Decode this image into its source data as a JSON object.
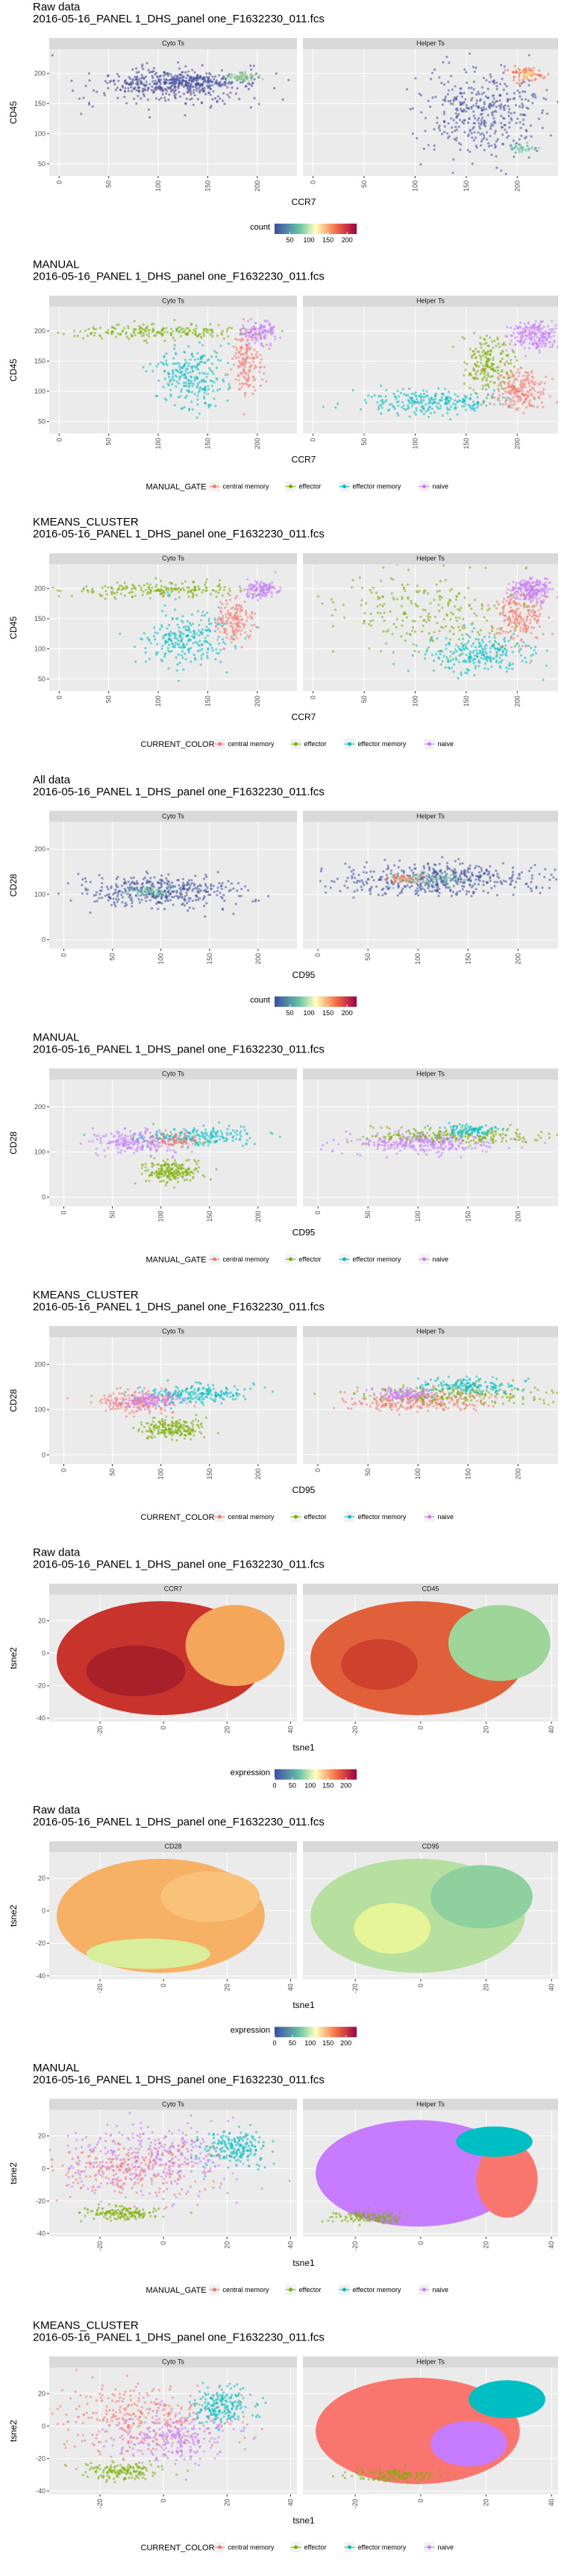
{
  "chart_data": [
    {
      "type": "density",
      "title": [
        "Raw data",
        "2016-05-16_PANEL 1_DHS_panel one_F1632230_011.fcs"
      ],
      "facets": [
        "Cyto Ts",
        "Helper Ts"
      ],
      "xlabel": "CCR7",
      "ylabel": "CD45",
      "xlim": [
        -10,
        240
      ],
      "xticks": [
        0,
        50,
        100,
        150,
        200
      ],
      "ylim": [
        30,
        240
      ],
      "yticks": [
        50,
        100,
        150,
        200
      ],
      "legend_title": "count",
      "colorbar_lim": [
        10,
        225
      ],
      "colorbar_ticks": [
        50,
        100,
        150,
        200
      ]
    },
    {
      "type": "scatter",
      "title": [
        "MANUAL",
        "2016-05-16_PANEL 1_DHS_panel one_F1632230_011.fcs"
      ],
      "facets": [
        "Cyto Ts",
        "Helper Ts"
      ],
      "xlabel": "CCR7",
      "ylabel": "CD45",
      "xlim": [
        -10,
        240
      ],
      "xticks": [
        0,
        50,
        100,
        150,
        200
      ],
      "ylim": [
        30,
        240
      ],
      "yticks": [
        50,
        100,
        150,
        200
      ],
      "legend_title": "MANUAL_GATE",
      "series": [
        {
          "name": "central memory",
          "color": "#F8766D"
        },
        {
          "name": "effector",
          "color": "#7CAE00"
        },
        {
          "name": "effector memory",
          "color": "#00BFC4"
        },
        {
          "name": "naive",
          "color": "#C77CFF"
        }
      ]
    },
    {
      "type": "scatter",
      "title": [
        "KMEANS_CLUSTER",
        "2016-05-16_PANEL 1_DHS_panel one_F1632230_011.fcs"
      ],
      "facets": [
        "Cyto Ts",
        "Helper Ts"
      ],
      "xlabel": "CCR7",
      "ylabel": "CD45",
      "xlim": [
        -10,
        240
      ],
      "xticks": [
        0,
        50,
        100,
        150,
        200
      ],
      "ylim": [
        30,
        240
      ],
      "yticks": [
        50,
        100,
        150,
        200
      ],
      "legend_title": "CURRENT_COLOR",
      "series": [
        {
          "name": "central memory",
          "color": "#F8766D"
        },
        {
          "name": "effector",
          "color": "#7CAE00"
        },
        {
          "name": "effector memory",
          "color": "#00BFC4"
        },
        {
          "name": "naive",
          "color": "#C77CFF"
        }
      ]
    },
    {
      "type": "density",
      "title": [
        "All data",
        "2016-05-16_PANEL 1_DHS_panel one_F1632230_011.fcs"
      ],
      "facets": [
        "Cyto Ts",
        "Helper Ts"
      ],
      "xlabel": "CD95",
      "ylabel": "CD28",
      "xlim": [
        -15,
        240
      ],
      "xticks": [
        0,
        50,
        100,
        150,
        200
      ],
      "ylim": [
        -20,
        260
      ],
      "yticks": [
        0,
        100,
        200
      ],
      "legend_title": "count",
      "colorbar_lim": [
        10,
        225
      ],
      "colorbar_ticks": [
        50,
        100,
        150,
        200
      ]
    },
    {
      "type": "scatter",
      "title": [
        "MANUAL",
        "2016-05-16_PANEL 1_DHS_panel one_F1632230_011.fcs"
      ],
      "facets": [
        "Cyto Ts",
        "Helper Ts"
      ],
      "xlabel": "CD95",
      "ylabel": "CD28",
      "xlim": [
        -15,
        240
      ],
      "xticks": [
        0,
        50,
        100,
        150,
        200
      ],
      "ylim": [
        -20,
        260
      ],
      "yticks": [
        0,
        100,
        200
      ],
      "legend_title": "MANUAL_GATE",
      "series": [
        {
          "name": "central memory",
          "color": "#F8766D"
        },
        {
          "name": "effector",
          "color": "#7CAE00"
        },
        {
          "name": "effector memory",
          "color": "#00BFC4"
        },
        {
          "name": "naive",
          "color": "#C77CFF"
        }
      ]
    },
    {
      "type": "scatter",
      "title": [
        "KMEANS_CLUSTER",
        "2016-05-16_PANEL 1_DHS_panel one_F1632230_011.fcs"
      ],
      "facets": [
        "Cyto Ts",
        "Helper Ts"
      ],
      "xlabel": "CD95",
      "ylabel": "CD28",
      "xlim": [
        -15,
        240
      ],
      "xticks": [
        0,
        50,
        100,
        150,
        200
      ],
      "ylim": [
        -20,
        260
      ],
      "yticks": [
        0,
        100,
        200
      ],
      "legend_title": "CURRENT_COLOR",
      "series": [
        {
          "name": "central memory",
          "color": "#F8766D"
        },
        {
          "name": "effector",
          "color": "#7CAE00"
        },
        {
          "name": "effector memory",
          "color": "#00BFC4"
        },
        {
          "name": "naive",
          "color": "#C77CFF"
        }
      ]
    },
    {
      "type": "expression",
      "title": [
        "Raw data",
        "2016-05-16_PANEL 1_DHS_panel one_F1632230_011.fcs"
      ],
      "facets": [
        "CCR7",
        "CD45"
      ],
      "xlabel": "tsne1",
      "ylabel": "tsne2",
      "xlim": [
        -36,
        42
      ],
      "xticks": [
        -20,
        0,
        20,
        40
      ],
      "ylim": [
        -42,
        36
      ],
      "yticks": [
        -40,
        -20,
        0,
        20
      ],
      "legend_title": "expression",
      "colorbar_lim": [
        0,
        230
      ],
      "colorbar_ticks": [
        0,
        50,
        100,
        150,
        200
      ]
    },
    {
      "type": "expression",
      "title": [
        "Raw data",
        "2016-05-16_PANEL 1_DHS_panel one_F1632230_011.fcs"
      ],
      "facets": [
        "CD28",
        "CD95"
      ],
      "xlabel": "tsne1",
      "ylabel": "tsne2",
      "xlim": [
        -36,
        42
      ],
      "xticks": [
        -20,
        0,
        20,
        40
      ],
      "ylim": [
        -42,
        36
      ],
      "yticks": [
        -40,
        -20,
        0,
        20
      ],
      "legend_title": "expression",
      "colorbar_lim": [
        0,
        230
      ],
      "colorbar_ticks": [
        0,
        50,
        100,
        150,
        200
      ]
    },
    {
      "type": "tsne",
      "title": [
        "MANUAL",
        "2016-05-16_PANEL 1_DHS_panel one_F1632230_011.fcs"
      ],
      "facets": [
        "Cyto Ts",
        "Helper Ts"
      ],
      "xlabel": "tsne1",
      "ylabel": "tsne2",
      "xlim": [
        -36,
        42
      ],
      "xticks": [
        -20,
        0,
        20,
        40
      ],
      "ylim": [
        -42,
        36
      ],
      "yticks": [
        -40,
        -20,
        0,
        20
      ],
      "legend_title": "MANUAL_GATE",
      "series": [
        {
          "name": "central memory",
          "color": "#F8766D"
        },
        {
          "name": "effector",
          "color": "#7CAE00"
        },
        {
          "name": "effector memory",
          "color": "#00BFC4"
        },
        {
          "name": "naive",
          "color": "#C77CFF"
        }
      ]
    },
    {
      "type": "tsne",
      "title": [
        "KMEANS_CLUSTER",
        "2016-05-16_PANEL 1_DHS_panel one_F1632230_011.fcs"
      ],
      "facets": [
        "Cyto Ts",
        "Helper Ts"
      ],
      "xlabel": "tsne1",
      "ylabel": "tsne2",
      "xlim": [
        -36,
        42
      ],
      "xticks": [
        -20,
        0,
        20,
        40
      ],
      "ylim": [
        -42,
        36
      ],
      "yticks": [
        -40,
        -20,
        0,
        20
      ],
      "legend_title": "CURRENT_COLOR",
      "series": [
        {
          "name": "central memory",
          "color": "#F8766D"
        },
        {
          "name": "effector",
          "color": "#7CAE00"
        },
        {
          "name": "effector memory",
          "color": "#00BFC4"
        },
        {
          "name": "naive",
          "color": "#C77CFF"
        }
      ]
    }
  ]
}
